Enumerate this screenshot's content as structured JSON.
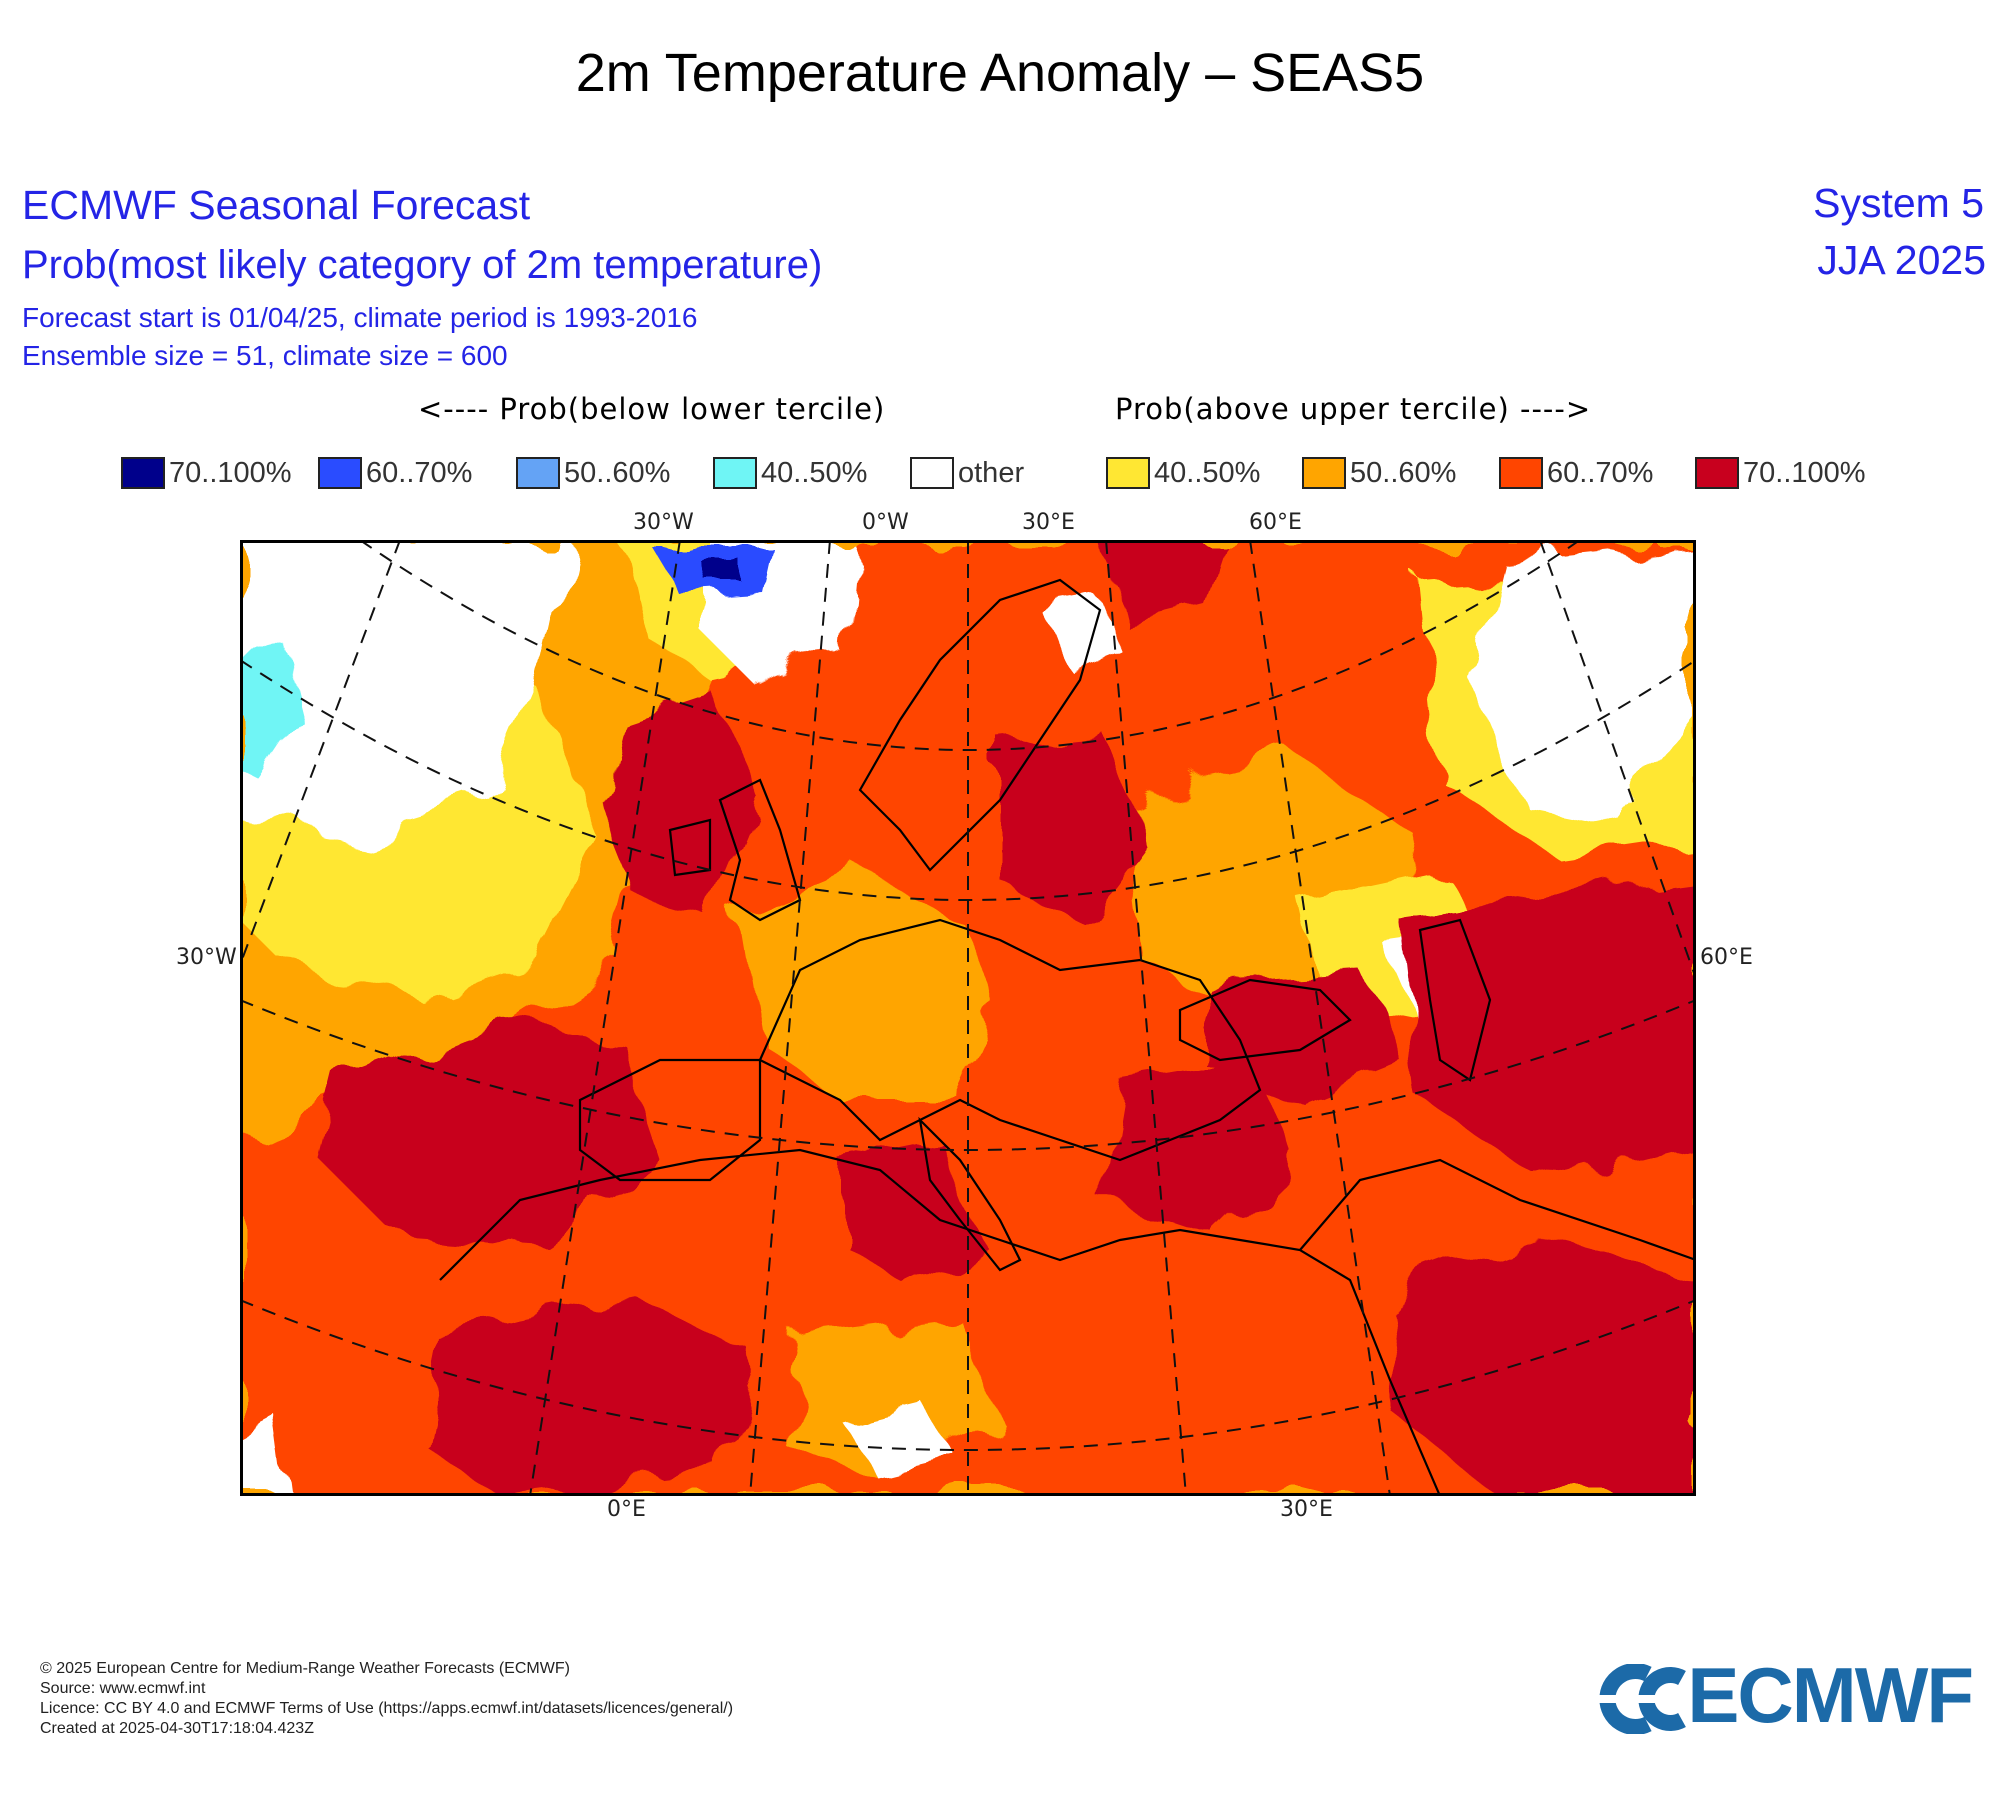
{
  "page_title": "2m Temperature Anomaly – SEAS5",
  "forecast": {
    "title": "ECMWF Seasonal Forecast",
    "subtitle": "Prob(most likely category of 2m temperature)",
    "start_line": "Forecast start is 01/04/25, climate period is 1993-2016",
    "ensemble_line": "Ensemble size = 51, climate size = 600",
    "system": "System 5",
    "season": "JJA 2025"
  },
  "legend": {
    "below_heading": "<---- Prob(below lower tercile)",
    "above_heading": "Prob(above upper tercile) ---->",
    "items": [
      {
        "label": "70..100%",
        "color": "#00008b"
      },
      {
        "label": "60..70%",
        "color": "#2a4cff"
      },
      {
        "label": "50..60%",
        "color": "#64a3f5"
      },
      {
        "label": "40..50%",
        "color": "#6ff5f5"
      },
      {
        "label": "other",
        "color": "#ffffff"
      },
      {
        "label": "40..50%",
        "color": "#ffe733"
      },
      {
        "label": "50..60%",
        "color": "#ffa500"
      },
      {
        "label": "60..70%",
        "color": "#ff4500"
      },
      {
        "label": "70..100%",
        "color": "#c8001e"
      }
    ]
  },
  "map": {
    "ticks": {
      "top": [
        "30°W",
        "0°W",
        "30°E",
        "60°E"
      ],
      "left": "30°W",
      "right": "60°E",
      "bottom": [
        "0°E",
        "30°E"
      ]
    },
    "coastline_color": "#000000",
    "graticule_style": "dashed"
  },
  "footer": {
    "copyright": "© 2025 European Centre for Medium-Range Weather Forecasts (ECMWF)",
    "source": "Source: www.ecmwf.int",
    "licence": "Licence: CC BY 4.0 and ECMWF Terms of Use (https://apps.ecmwf.int/datasets/licences/general/)",
    "created": "Created at 2025-04-30T17:18:04.423Z"
  },
  "logo": {
    "text": "ECMWF",
    "color": "#1c6aa8"
  }
}
